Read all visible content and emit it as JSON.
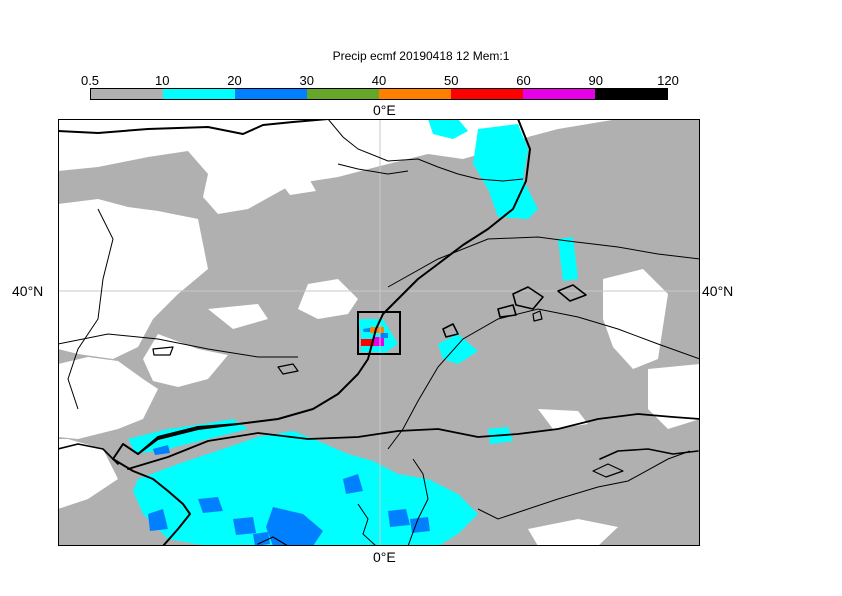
{
  "title": "Precip ecmf 20190418 12 Mem:1",
  "colorbar": {
    "ticks": [
      "0.5",
      "10",
      "20",
      "30",
      "40",
      "50",
      "60",
      "90",
      "120"
    ],
    "colors": [
      "#b0b0b0",
      "#00ffff",
      "#0080ff",
      "#66a62a",
      "#ff8000",
      "#ff0000",
      "#e600e6",
      "#000000"
    ]
  },
  "axes": {
    "top_lon": "0°E",
    "bottom_lon": "0°E",
    "left_lat": "40°N",
    "right_lat": "40°N"
  },
  "map": {
    "land_outline_color": "#000000",
    "water_color": "#ffffff",
    "gridline_color": "#c8c8c8",
    "highlight_box": "black rectangle around heaviest precipitation"
  }
}
